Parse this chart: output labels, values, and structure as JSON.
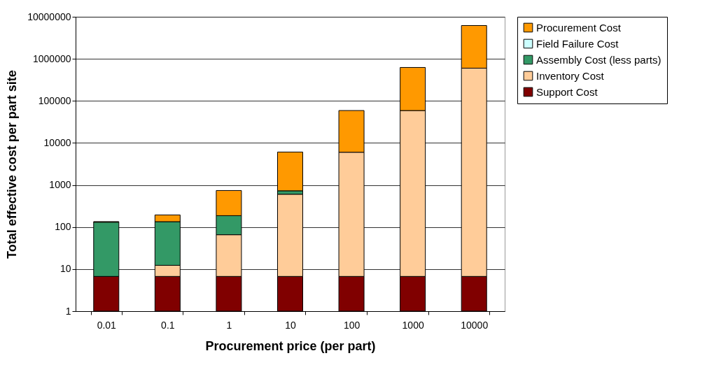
{
  "chart_data": {
    "type": "bar",
    "stacked": true,
    "log": true,
    "xlabel": "Procurement price (per part)",
    "ylabel": "Total effective cost per part site",
    "categories": [
      "0.01",
      "0.1",
      "1",
      "10",
      "100",
      "1000",
      "10000"
    ],
    "series": [
      {
        "name": "Support Cost",
        "color": "#800000",
        "values": [
          6.7,
          6.7,
          6.7,
          6.7,
          6.7,
          6.7,
          6.7
        ]
      },
      {
        "name": "Inventory Cost",
        "color": "#ffcc99",
        "values": [
          null,
          5.6,
          59,
          596,
          6000,
          59000,
          600000
        ]
      },
      {
        "name": "Assembly Cost (less parts)",
        "color": "#339966",
        "values": [
          124,
          122,
          121,
          125,
          null,
          null,
          null
        ]
      },
      {
        "name": "Field Failure Cost",
        "color": "#ccffff",
        "values": [
          null,
          null,
          null,
          null,
          null,
          null,
          null
        ]
      },
      {
        "name": "Procurement Cost",
        "color": "#ff9900",
        "values": [
          4,
          60,
          553,
          5350,
          53000,
          565000,
          5600000
        ]
      }
    ],
    "ylim": [
      1,
      10000000
    ],
    "yticks": [
      1,
      10,
      100,
      1000,
      10000,
      100000,
      1000000,
      10000000
    ],
    "grid": "y",
    "legend": "right"
  }
}
